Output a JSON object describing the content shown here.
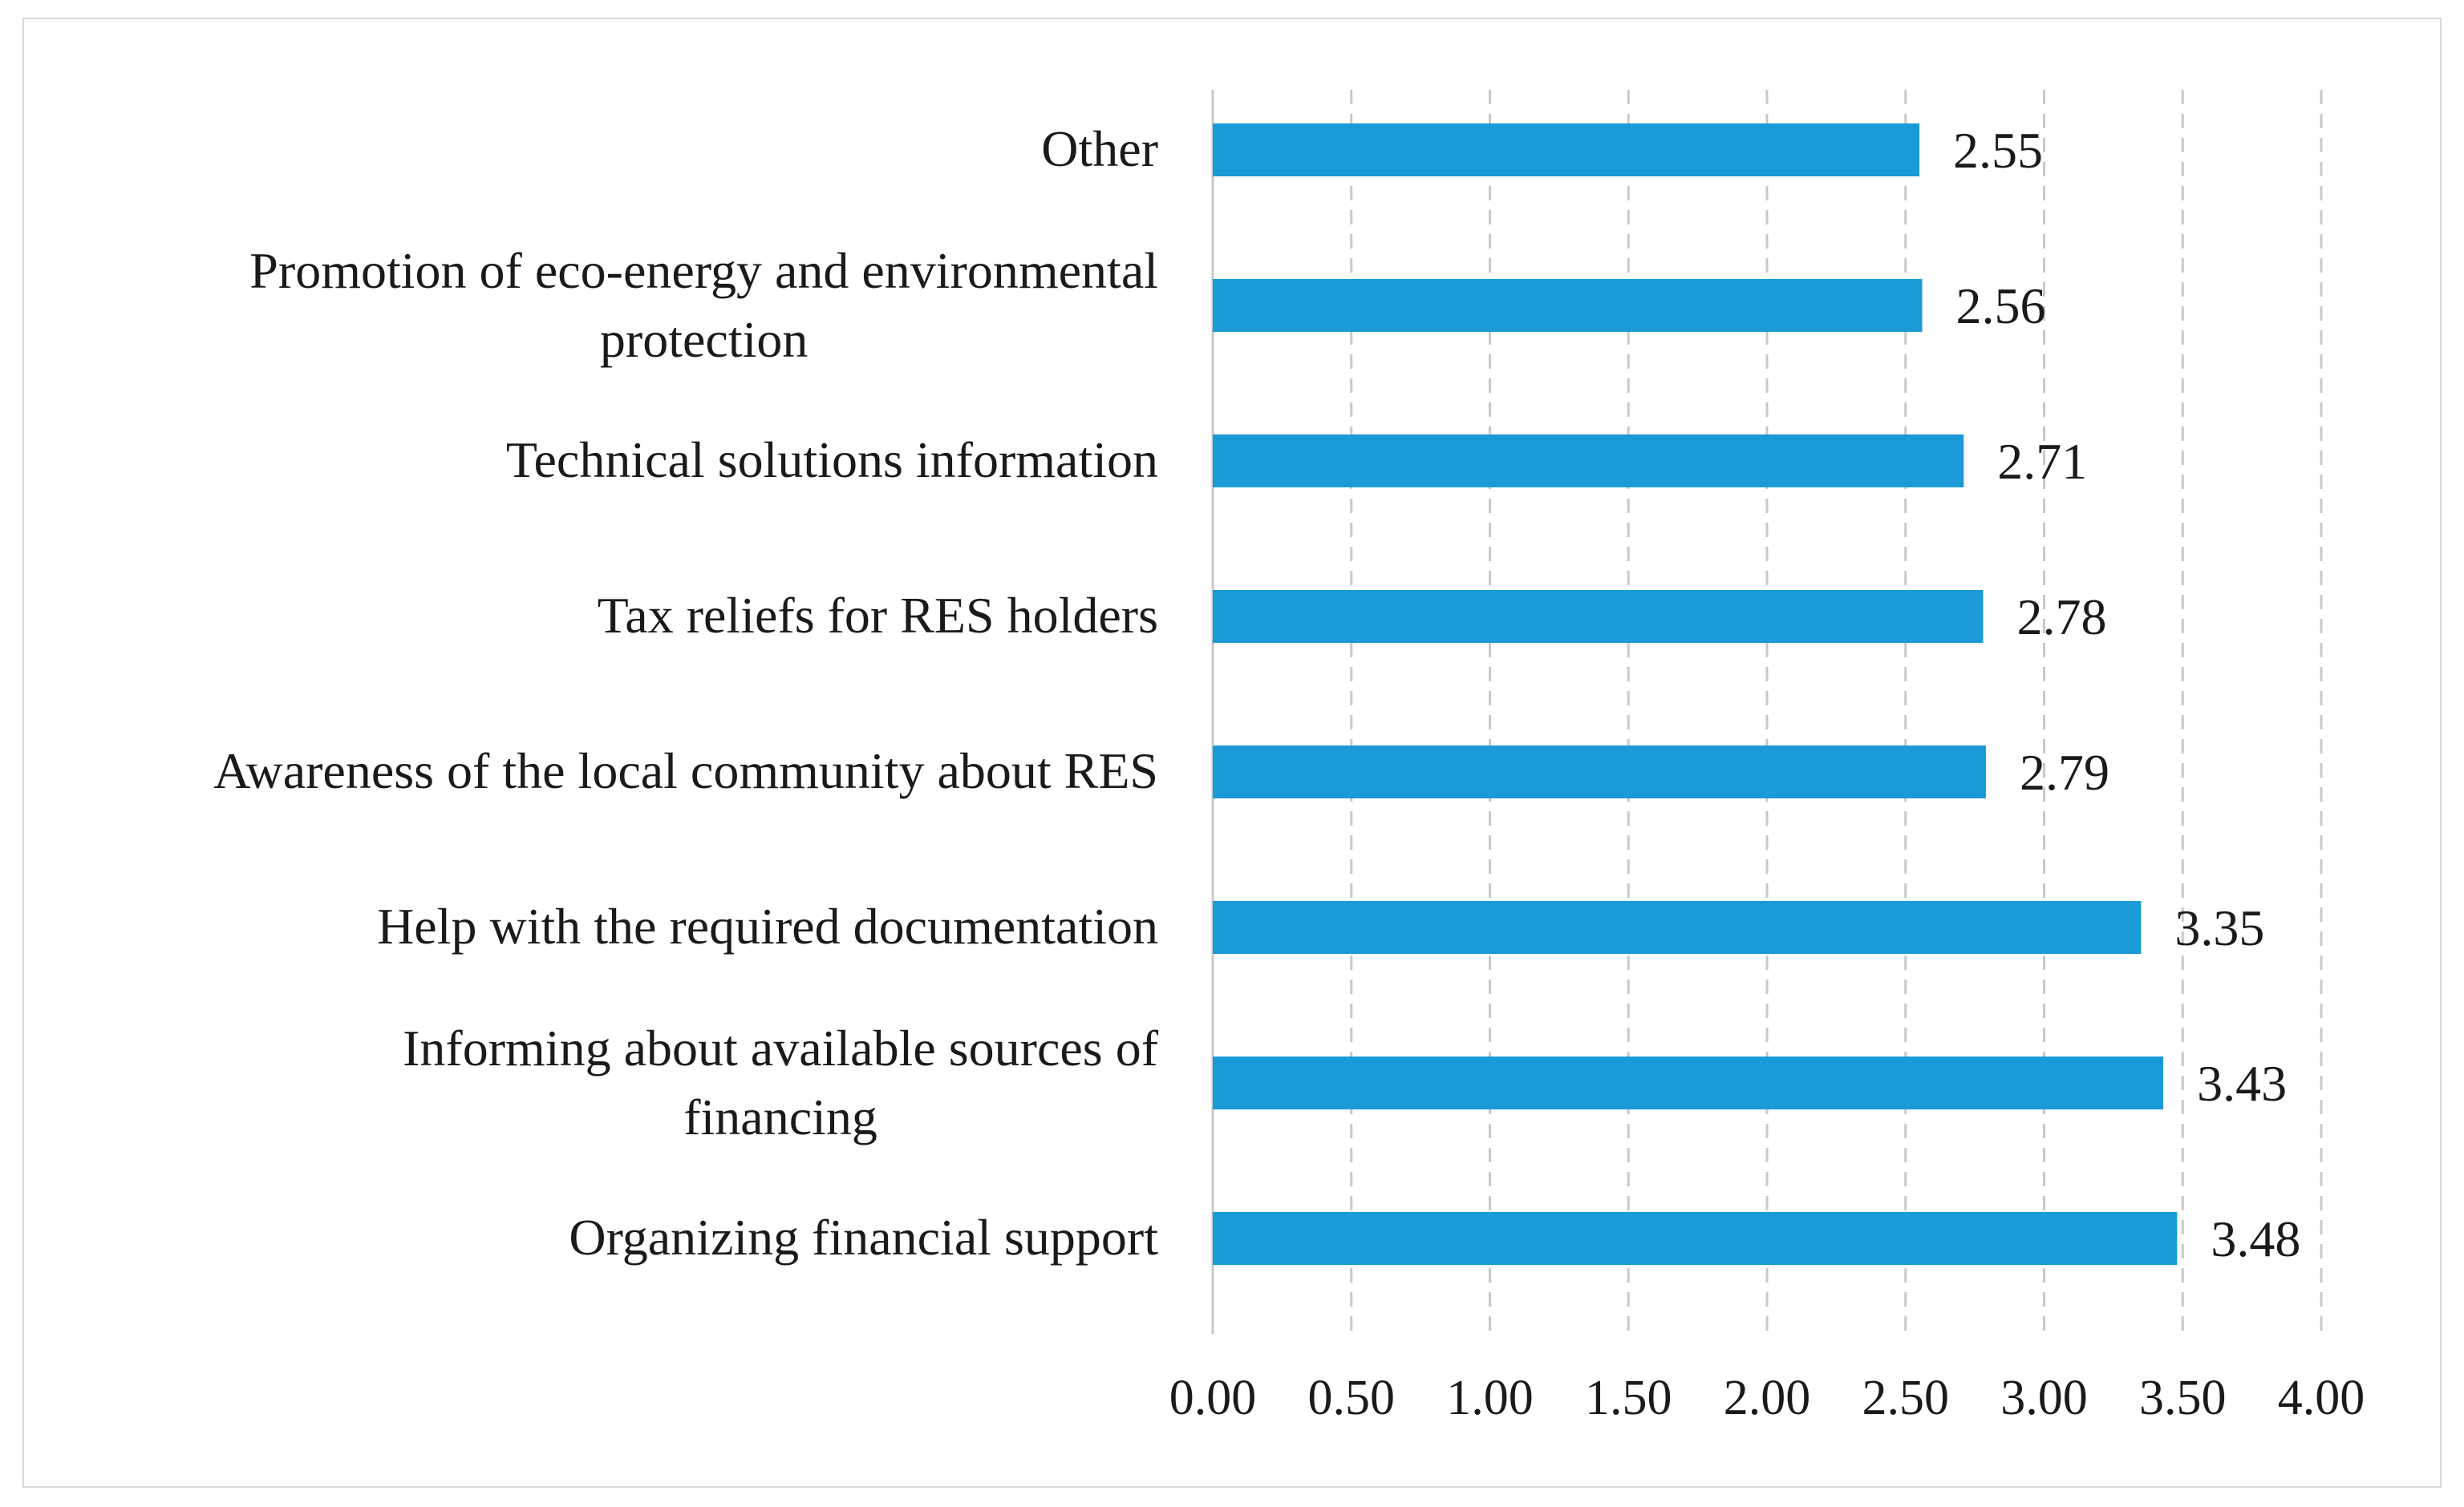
{
  "chart_data": {
    "type": "bar",
    "orientation": "horizontal",
    "categories": [
      "Other",
      "Promotion of eco-energy and environmental protection",
      "Technical solutions information",
      "Tax reliefs for RES holders",
      "Awareness of the local community about RES",
      "Help with the required documentation",
      "Informing about available sources of financing",
      "Organizing financial support"
    ],
    "category_lines": [
      [
        "Other"
      ],
      [
        "Promotion of eco-energy and environmental",
        "protection"
      ],
      [
        "Technical solutions information"
      ],
      [
        "Tax reliefs for RES holders"
      ],
      [
        "Awareness of the local community about RES"
      ],
      [
        "Help with the required documentation"
      ],
      [
        "Informing about available sources of",
        "financing"
      ],
      [
        "Organizing financial support"
      ]
    ],
    "values": [
      2.55,
      2.56,
      2.71,
      2.78,
      2.79,
      3.35,
      3.43,
      3.48
    ],
    "value_labels": [
      "2.55",
      "2.56",
      "2.71",
      "2.78",
      "2.79",
      "3.35",
      "3.43",
      "3.48"
    ],
    "xlim": [
      0,
      4
    ],
    "xticks": [
      0,
      0.5,
      1,
      1.5,
      2,
      2.5,
      3,
      3.5,
      4
    ],
    "xtick_labels": [
      "0.00",
      "0.50",
      "1.00",
      "1.50",
      "2.00",
      "2.50",
      "3.00",
      "3.50",
      "4.00"
    ],
    "grid": true,
    "legend": "none",
    "title": "",
    "xlabel": "",
    "ylabel": "",
    "bar_color": "#1a9ad6"
  }
}
